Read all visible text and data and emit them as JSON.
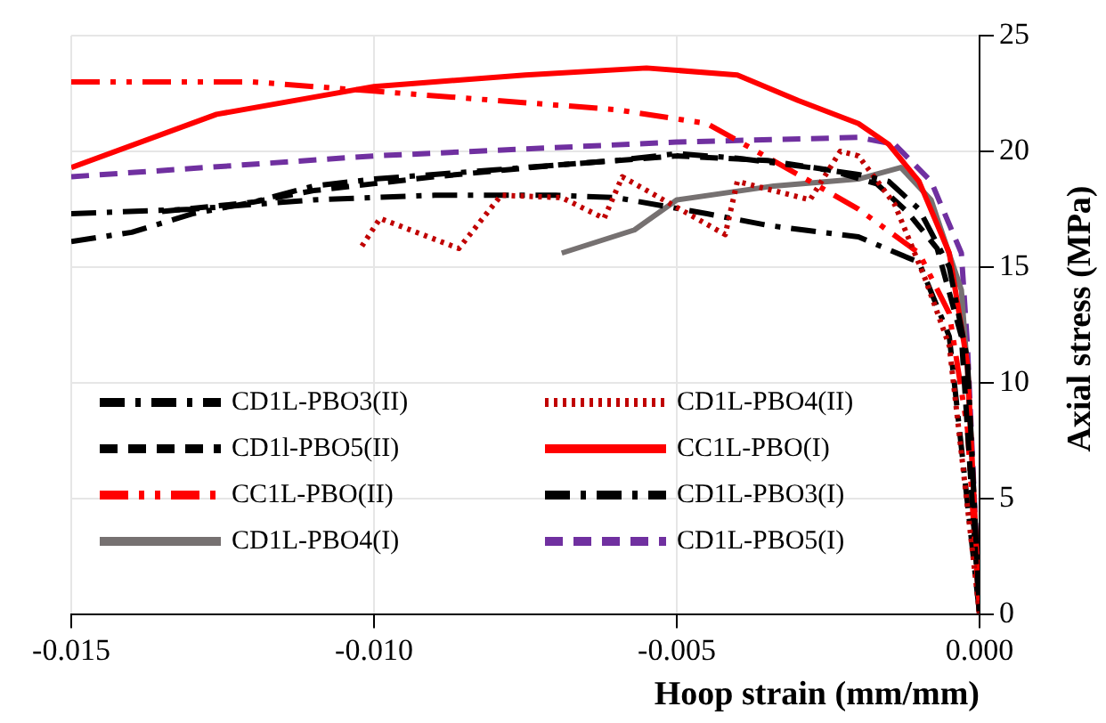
{
  "chart_data": {
    "type": "line",
    "xlabel": "Hoop strain (mm/mm)",
    "ylabel": "Axial stress (MPa)",
    "xlim": [
      -0.015,
      0
    ],
    "xticks": [
      {
        "value": -0.015,
        "label": "-0.015"
      },
      {
        "value": -0.01,
        "label": "-0.010"
      },
      {
        "value": -0.005,
        "label": "-0.005"
      },
      {
        "value": 0,
        "label": "0.000"
      }
    ],
    "ylim": [
      0,
      25
    ],
    "yticks": [
      0,
      5,
      10,
      15,
      20,
      25
    ],
    "grid": true,
    "legend": "bottom left",
    "marker": "none",
    "series": [
      {
        "name": "CD1L-PBO3(II)",
        "color": "#000000",
        "line_style": "dashdot",
        "x": [
          -0.015,
          -0.014,
          -0.013,
          -0.012,
          -0.011,
          -0.01,
          -0.008,
          -0.006,
          -0.005,
          -0.004,
          -0.0028,
          -0.002,
          -0.0015,
          -0.001,
          -0.0005,
          -0.0002,
          0
        ],
        "values": [
          16.1,
          16.5,
          17.3,
          17.8,
          18.5,
          18.8,
          19.2,
          19.6,
          19.9,
          19.7,
          19.3,
          19,
          18.7,
          17.5,
          15,
          11,
          0
        ]
      },
      {
        "name": "CD1L-PBO4(II)",
        "color": "#c00000",
        "line_style": "dotted",
        "x": [
          -0.0102,
          -0.0099,
          -0.0086,
          -0.0079,
          -0.0069,
          -0.0062,
          -0.0059,
          -0.0042,
          -0.004,
          -0.0028,
          -0.0023,
          -0.002,
          -0.0014,
          -0.0009,
          -0.0005,
          0
        ],
        "values": [
          15.9,
          17.1,
          15.8,
          18.1,
          18.0,
          17.1,
          18.9,
          16.4,
          18.7,
          17.9,
          20.0,
          19.8,
          17.7,
          14.5,
          11.6,
          0
        ]
      },
      {
        "name": "CD1l-PBO5(II)",
        "color": "#000000",
        "line_style": "dashed",
        "x": [
          -0.0135,
          -0.012,
          -0.011,
          -0.009,
          -0.007,
          -0.005,
          -0.0035,
          -0.0025,
          -0.0017,
          -0.0012,
          -0.0007,
          -0.0003,
          0
        ],
        "values": [
          17.4,
          17.8,
          18.3,
          18.9,
          19.4,
          19.8,
          19.6,
          19.2,
          18.6,
          17.4,
          15.8,
          12,
          0
        ]
      },
      {
        "name": "CC1L-PBO(I)",
        "color": "#ff0000",
        "line_style": "solid",
        "x": [
          -0.015,
          -0.0126,
          -0.01,
          -0.0075,
          -0.0055,
          -0.004,
          -0.003,
          -0.002,
          -0.0015,
          -0.001,
          -0.0005,
          -0.0002,
          0
        ],
        "values": [
          19.3,
          21.6,
          22.8,
          23.3,
          23.6,
          23.3,
          22.2,
          21.2,
          20.3,
          18.7,
          15.6,
          10.8,
          0
        ]
      },
      {
        "name": "CC1L-PBO(II)",
        "color": "#ff0000",
        "line_style": "dashdotdot",
        "x": [
          -0.015,
          -0.012,
          -0.01,
          -0.008,
          -0.006,
          -0.0045,
          -0.003,
          -0.002,
          -0.001,
          -0.0005,
          -0.0002,
          0
        ],
        "values": [
          23.0,
          23.0,
          22.6,
          22.2,
          21.8,
          21.2,
          19.0,
          17.5,
          15.6,
          13,
          8,
          0
        ]
      },
      {
        "name": "CD1L-PBO3(I)",
        "color": "#000000",
        "line_style": "dashdot",
        "x": [
          -0.015,
          -0.013,
          -0.011,
          -0.009,
          -0.007,
          -0.006,
          -0.0045,
          -0.0035,
          -0.002,
          -0.001,
          -0.0005,
          0
        ],
        "values": [
          17.3,
          17.5,
          17.9,
          18.1,
          18.1,
          18.0,
          17.3,
          16.8,
          16.3,
          15.2,
          12,
          0
        ]
      },
      {
        "name": "CD1L-PBO4(I)",
        "color": "#767171",
        "line_style": "solid",
        "x": [
          -0.0069,
          -0.0057,
          -0.005,
          -0.0034,
          -0.002,
          -0.0013,
          -0.0008,
          -0.0003,
          -0.0002,
          0
        ],
        "values": [
          15.6,
          16.6,
          17.9,
          18.5,
          18.8,
          19.3,
          17.9,
          14.0,
          10.5,
          0
        ]
      },
      {
        "name": "CD1L-PBO5(I)",
        "color": "#7030a0",
        "line_style": "dashed",
        "x": [
          -0.015,
          -0.01,
          -0.005,
          -0.002,
          -0.0014,
          -0.0008,
          -0.0003,
          -0.0002,
          0
        ],
        "values": [
          18.9,
          19.8,
          20.4,
          20.6,
          20.3,
          18.7,
          15.6,
          11.6,
          0
        ]
      }
    ]
  }
}
